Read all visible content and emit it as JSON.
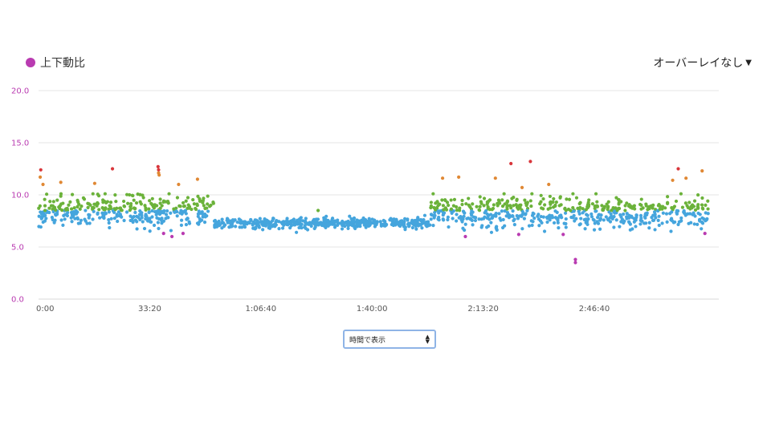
{
  "legend": {
    "label": "上下動比",
    "color": "#b93bb1"
  },
  "overlay": {
    "label": "オーバーレイなし",
    "caret": "▼"
  },
  "mode_select": {
    "value": "時間で表示",
    "arrows_up": "▲",
    "arrows_down": "▼"
  },
  "colors": {
    "blue": "#45a5dd",
    "green": "#6bb23a",
    "orange": "#e08834",
    "red": "#d9363b",
    "purple": "#b93bb1",
    "grid": "#e6e6e6",
    "ytick": "#b93bb1"
  },
  "chart_data": {
    "type": "scatter",
    "title": "",
    "xlabel": "",
    "ylabel": "",
    "xlim": [
      0,
      12240
    ],
    "ylim": [
      0,
      20
    ],
    "y_ticks": [
      {
        "value": 0,
        "label": "0.0"
      },
      {
        "value": 5,
        "label": "5.0"
      },
      {
        "value": 10,
        "label": "10.0"
      },
      {
        "value": 15,
        "label": "15.0"
      },
      {
        "value": 20,
        "label": "20.0"
      }
    ],
    "x_ticks": [
      {
        "value": 0,
        "label": "0:00"
      },
      {
        "value": 2000,
        "label": "33:20"
      },
      {
        "value": 4000,
        "label": "1:06:40"
      },
      {
        "value": 6000,
        "label": "1:40:00"
      },
      {
        "value": 8000,
        "label": "2:13:20"
      },
      {
        "value": 10000,
        "label": "2:46:40"
      }
    ],
    "grid": true,
    "segments": [
      {
        "x_start": 0,
        "x_end": 3150,
        "mean": 8.5,
        "spread": 1.4
      },
      {
        "x_start": 3150,
        "x_end": 7050,
        "mean": 7.3,
        "spread": 0.45
      },
      {
        "x_start": 7050,
        "x_end": 12050,
        "mean": 8.3,
        "spread": 1.4
      }
    ],
    "color_bands": [
      {
        "min": 0,
        "max": 6.4,
        "color": "purple"
      },
      {
        "min": 6.4,
        "max": 8.5,
        "color": "blue"
      },
      {
        "min": 8.5,
        "max": 10.2,
        "color": "green"
      },
      {
        "min": 10.2,
        "max": 12.4,
        "color": "orange"
      },
      {
        "min": 12.4,
        "max": 20,
        "color": "red"
      }
    ],
    "outliers": [
      {
        "x": 40,
        "y": 12.4
      },
      {
        "x": 1330,
        "y": 12.5
      },
      {
        "x": 2150,
        "y": 12.7
      },
      {
        "x": 2160,
        "y": 12.4
      },
      {
        "x": 2160,
        "y": 12.1
      },
      {
        "x": 8500,
        "y": 13.0
      },
      {
        "x": 8850,
        "y": 13.2
      },
      {
        "x": 11510,
        "y": 12.5
      },
      {
        "x": 11940,
        "y": 12.3
      },
      {
        "x": 2250,
        "y": 6.3
      },
      {
        "x": 2400,
        "y": 6.0
      },
      {
        "x": 2600,
        "y": 6.3
      },
      {
        "x": 4640,
        "y": 6.4
      },
      {
        "x": 7680,
        "y": 6.0
      },
      {
        "x": 8150,
        "y": 6.4
      },
      {
        "x": 8640,
        "y": 6.2
      },
      {
        "x": 9440,
        "y": 6.2
      },
      {
        "x": 9660,
        "y": 3.8
      },
      {
        "x": 9660,
        "y": 3.5
      },
      {
        "x": 11990,
        "y": 6.3
      },
      {
        "x": 30,
        "y": 11.7
      },
      {
        "x": 80,
        "y": 11.0
      },
      {
        "x": 400,
        "y": 11.2
      },
      {
        "x": 1010,
        "y": 11.1
      },
      {
        "x": 2170,
        "y": 11.9
      },
      {
        "x": 2520,
        "y": 11.0
      },
      {
        "x": 2860,
        "y": 11.5
      },
      {
        "x": 7270,
        "y": 11.6
      },
      {
        "x": 7560,
        "y": 11.7
      },
      {
        "x": 8220,
        "y": 11.6
      },
      {
        "x": 8700,
        "y": 10.7
      },
      {
        "x": 9180,
        "y": 11.0
      },
      {
        "x": 11410,
        "y": 11.4
      },
      {
        "x": 11650,
        "y": 11.6
      },
      {
        "x": 5030,
        "y": 8.5
      }
    ]
  }
}
